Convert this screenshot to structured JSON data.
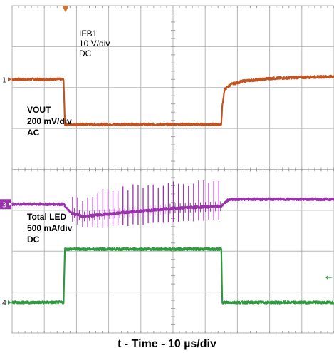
{
  "chart_data": {
    "type": "line",
    "title": "",
    "xlabel": "t - Time - 10 µs/div",
    "ylabel": "",
    "grid": true,
    "x_divisions": 10,
    "y_divisions": 8,
    "xlim_us": [
      0,
      100
    ],
    "series": [
      {
        "name": "IFB1",
        "channel_marker": "1",
        "scale": "10 V/div",
        "coupling": "DC",
        "color": "#c0531f",
        "x": [
          0,
          16,
          16.4,
          65,
          65.3,
          66,
          68,
          72,
          80,
          90,
          100
        ],
        "y": [
          6.2,
          6.2,
          5.1,
          5.1,
          5.55,
          5.95,
          6.08,
          6.16,
          6.22,
          6.25,
          6.27
        ]
      },
      {
        "name": "VOUT",
        "channel_marker": "3",
        "scale": "200 mV/div",
        "coupling": "AC",
        "color": "#9933aa",
        "x": [
          0,
          16,
          18,
          22,
          35,
          50,
          65,
          67,
          70,
          100
        ],
        "y": [
          3.15,
          3.15,
          2.95,
          2.85,
          2.95,
          3.05,
          3.1,
          3.25,
          3.27,
          3.27
        ],
        "ripple_start_us": 18,
        "ripple_end_us": 65,
        "ripple_spike_count": 30
      },
      {
        "name": "Total LED",
        "channel_marker": "4",
        "scale": "500 mA/div",
        "coupling": "DC",
        "color": "#2e9a3f",
        "x": [
          0,
          16,
          16.4,
          65,
          65.3,
          100
        ],
        "y": [
          0.75,
          0.75,
          2.05,
          2.05,
          0.75,
          0.75
        ]
      }
    ],
    "labels": {
      "ifb1": [
        "IFB1",
        "10 V/div",
        "DC"
      ],
      "vout": [
        "VOUT",
        "200 mV/div",
        "AC"
      ],
      "led": [
        "Total LED",
        "500 mA/div",
        "DC"
      ]
    },
    "trigger_marker": "▼",
    "right_marker": "←"
  }
}
